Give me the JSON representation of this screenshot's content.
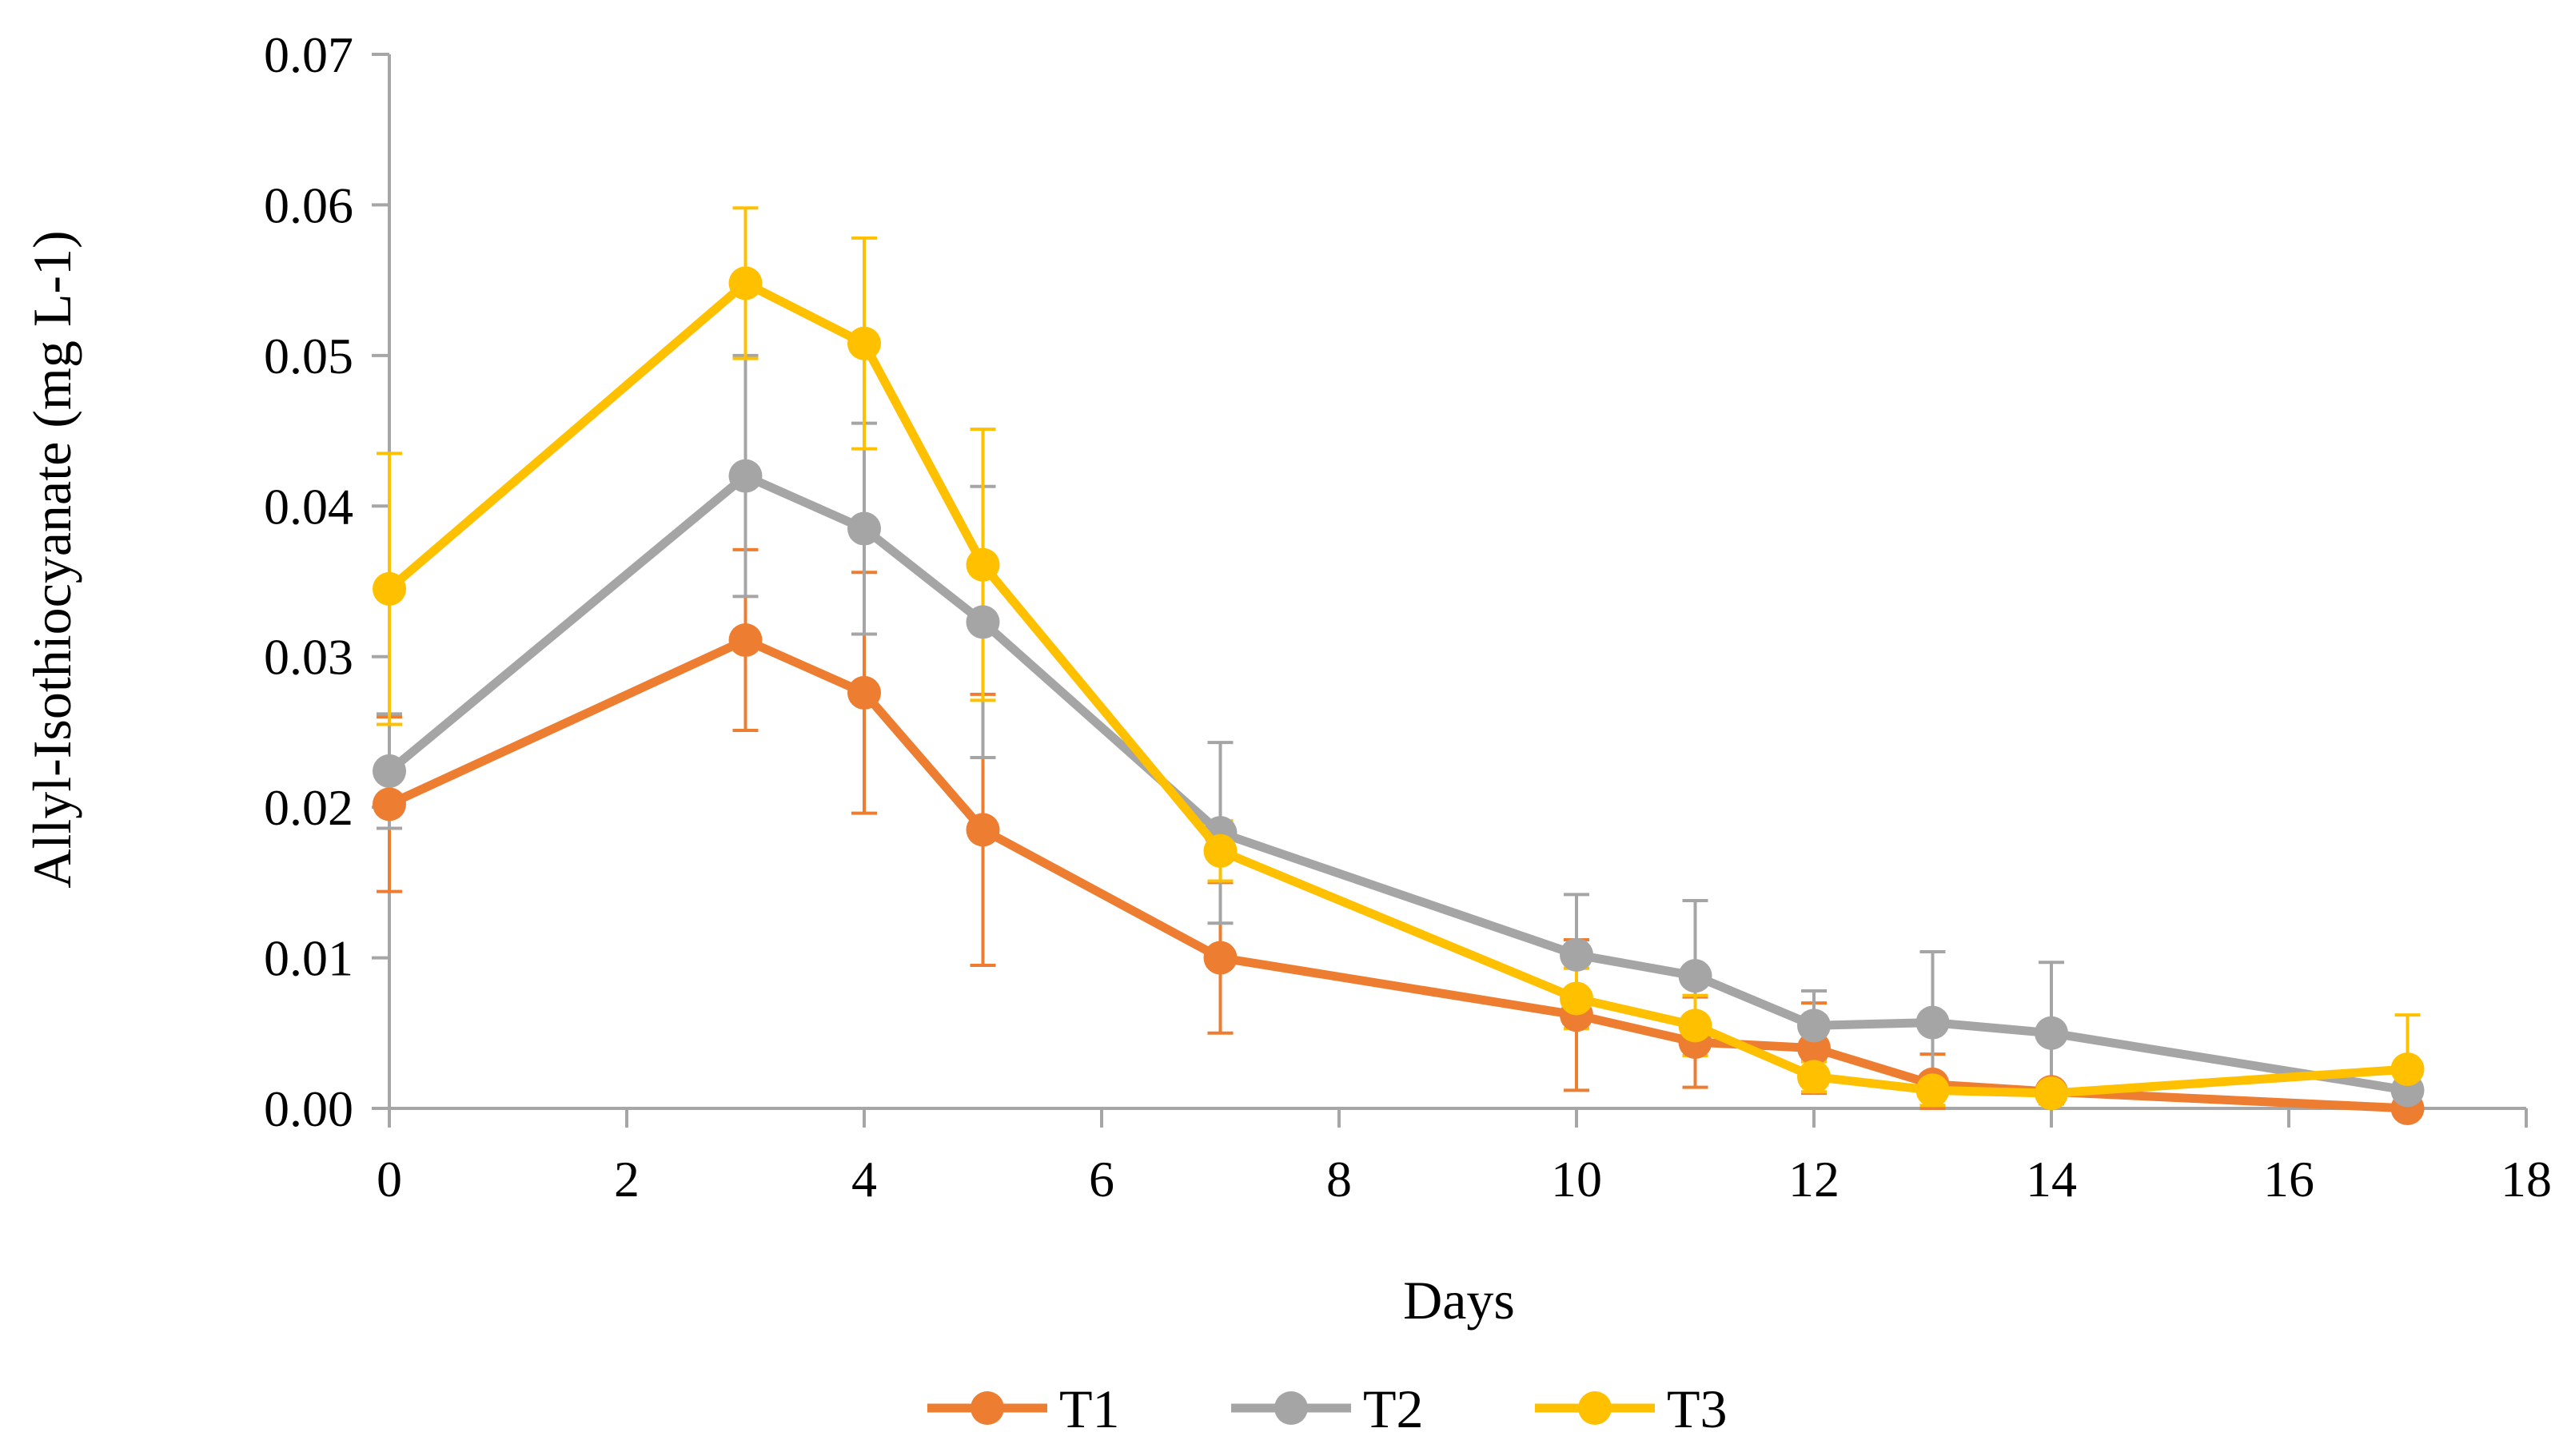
{
  "chart_data": {
    "type": "line",
    "title": "",
    "xlabel": "Days",
    "ylabel": "Allyl-Isothiocyanate (mg L-1)",
    "xlim": [
      0,
      18
    ],
    "ylim": [
      0,
      0.07
    ],
    "x_ticks": [
      0,
      2,
      4,
      6,
      8,
      10,
      12,
      14,
      16,
      18
    ],
    "x_tick_labels": [
      "0",
      "2",
      "4",
      "6",
      "8",
      "10",
      "12",
      "14",
      "16",
      "18"
    ],
    "y_ticks": [
      0,
      0.01,
      0.02,
      0.03,
      0.04,
      0.05,
      0.06,
      0.07
    ],
    "y_tick_labels": [
      "0.00",
      "0.01",
      "0.02",
      "0.03",
      "0.04",
      "0.05",
      "0.06",
      "0.07"
    ],
    "grid": false,
    "legend_position": "bottom-center",
    "x": [
      0,
      3,
      4,
      5,
      7,
      10,
      11,
      12,
      13,
      14,
      17
    ],
    "series": [
      {
        "name": "T1",
        "color": "#ED7D31",
        "values": [
          0.0202,
          0.0311,
          0.0276,
          0.0185,
          0.01,
          0.0062,
          0.0044,
          0.004,
          0.0016,
          0.0011,
          0.0
        ],
        "errors": [
          0.0058,
          0.006,
          0.008,
          0.009,
          0.005,
          0.005,
          0.003,
          0.003,
          0.002,
          0.0005,
          0.0
        ]
      },
      {
        "name": "T2",
        "color": "#A5A5A5",
        "values": [
          0.0224,
          0.042,
          0.0385,
          0.0323,
          0.0183,
          0.0102,
          0.0088,
          0.0055,
          0.0057,
          0.005,
          0.0012
        ],
        "errors": [
          0.0038,
          0.008,
          0.007,
          0.009,
          0.006,
          0.004,
          0.005,
          0.0023,
          0.0047,
          0.0047,
          0.0
        ]
      },
      {
        "name": "T3",
        "color": "#FFC000",
        "values": [
          0.0345,
          0.0548,
          0.0508,
          0.0361,
          0.0171,
          0.0073,
          0.0055,
          0.0021,
          0.0012,
          0.001,
          0.0026
        ],
        "errors": [
          0.009,
          0.005,
          0.007,
          0.009,
          0.002,
          0.002,
          0.002,
          0.001,
          0.001,
          0.0005,
          0.0036
        ]
      }
    ]
  }
}
